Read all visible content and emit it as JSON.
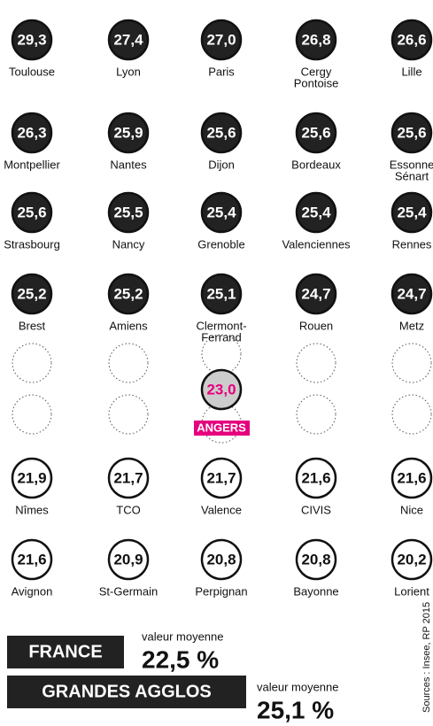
{
  "dark_rows": [
    [
      {
        "value": "29,3",
        "city": [
          "Toulouse"
        ]
      },
      {
        "value": "27,4",
        "city": [
          "Lyon"
        ]
      },
      {
        "value": "27,0",
        "city": [
          "Paris"
        ]
      },
      {
        "value": "26,8",
        "city": [
          "Cergy",
          "Pontoise"
        ]
      },
      {
        "value": "26,6",
        "city": [
          "Lille"
        ]
      }
    ],
    [
      {
        "value": "26,3",
        "city": [
          "Montpellier"
        ]
      },
      {
        "value": "25,9",
        "city": [
          "Nantes"
        ]
      },
      {
        "value": "25,6",
        "city": [
          "Dijon"
        ]
      },
      {
        "value": "25,6",
        "city": [
          "Bordeaux"
        ]
      },
      {
        "value": "25,6",
        "city": [
          "Essonne",
          "Sénart"
        ]
      }
    ],
    [
      {
        "value": "25,6",
        "city": [
          "Strasbourg"
        ]
      },
      {
        "value": "25,5",
        "city": [
          "Nancy"
        ]
      },
      {
        "value": "25,4",
        "city": [
          "Grenoble"
        ]
      },
      {
        "value": "25,4",
        "city": [
          "Valenciennes"
        ]
      },
      {
        "value": "25,4",
        "city": [
          "Rennes"
        ]
      }
    ],
    [
      {
        "value": "25,2",
        "city": [
          "Brest"
        ]
      },
      {
        "value": "25,2",
        "city": [
          "Amiens"
        ]
      },
      {
        "value": "25,1",
        "city": [
          "Clermont-",
          "Ferrand"
        ]
      },
      {
        "value": "24,7",
        "city": [
          "Rouen"
        ]
      },
      {
        "value": "24,7",
        "city": [
          "Metz"
        ]
      }
    ]
  ],
  "highlight": {
    "value": "23,0",
    "city": "ANGERS"
  },
  "light_rows": [
    [
      {
        "value": "21,9",
        "city": [
          "Nîmes"
        ]
      },
      {
        "value": "21,7",
        "city": [
          "TCO"
        ]
      },
      {
        "value": "21,7",
        "city": [
          "Valence"
        ]
      },
      {
        "value": "21,6",
        "city": [
          "CIVIS"
        ]
      },
      {
        "value": "21,6",
        "city": [
          "Nice"
        ]
      }
    ],
    [
      {
        "value": "21,6",
        "city": [
          "Avignon"
        ]
      },
      {
        "value": "20,9",
        "city": [
          "St-Germain"
        ]
      },
      {
        "value": "20,8",
        "city": [
          "Perpignan"
        ]
      },
      {
        "value": "20,8",
        "city": [
          "Bayonne"
        ]
      },
      {
        "value": "20,2",
        "city": [
          "Lorient"
        ]
      }
    ]
  ],
  "averages": [
    {
      "label": "FRANCE",
      "caption": "valeur moyenne",
      "value": "22,5 %"
    },
    {
      "label": "GRANDES AGGLOS",
      "caption": "valeur moyenne",
      "value": "25,1 %"
    }
  ],
  "source": "Sources : Insee, RP 2015"
}
